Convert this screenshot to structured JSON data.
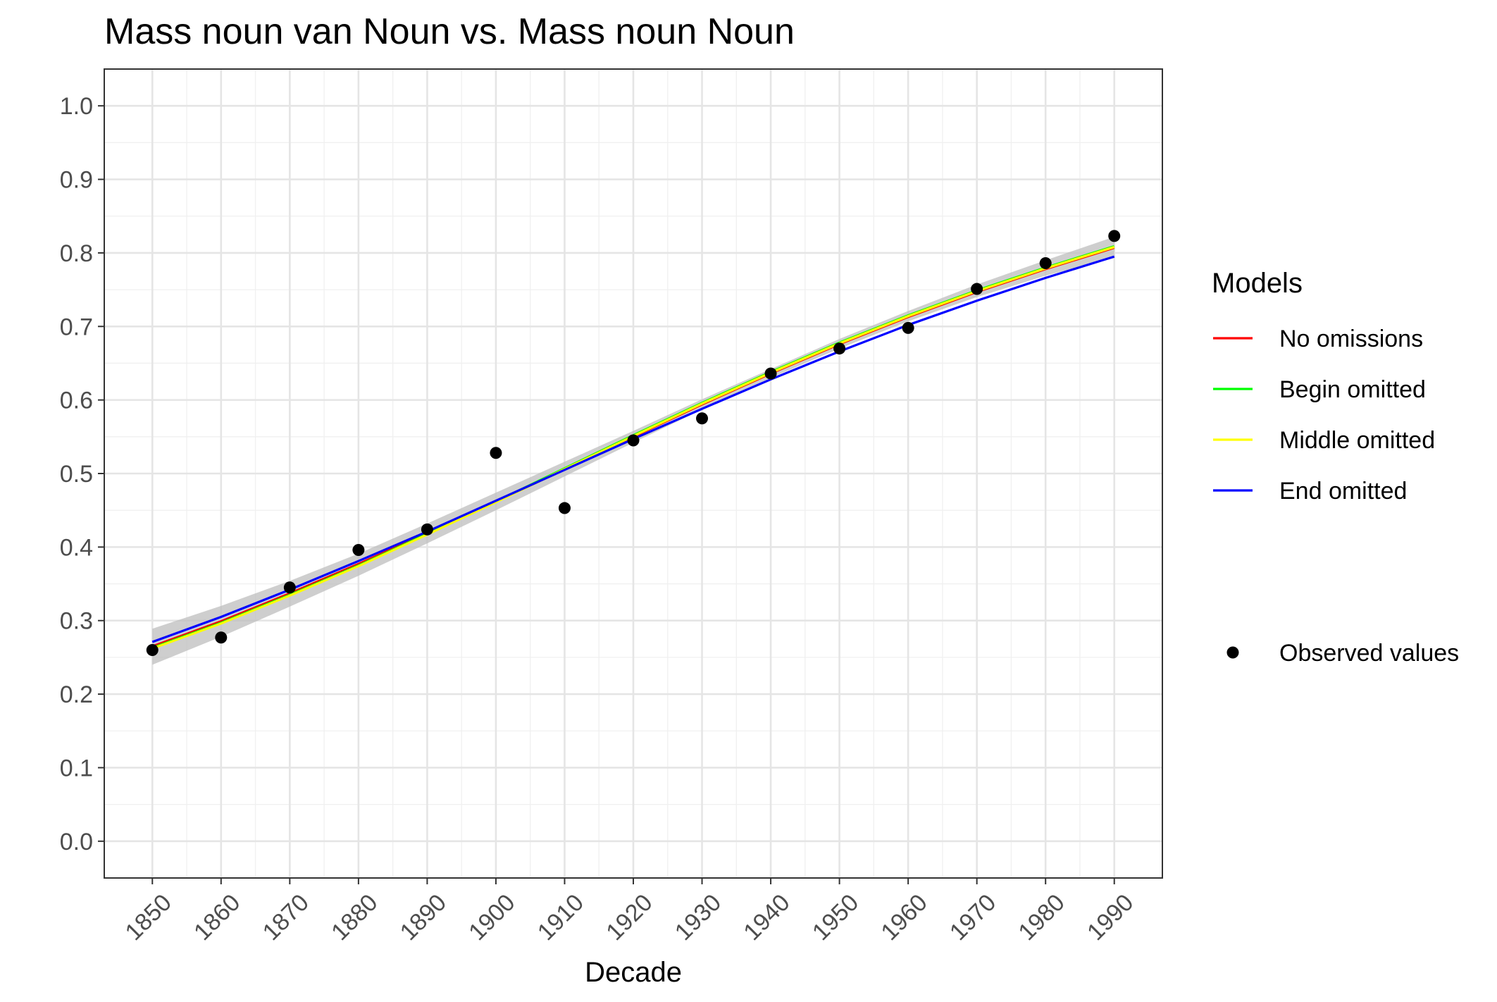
{
  "chart_data": {
    "type": "line",
    "title": "Mass noun van Noun vs. Mass noun Noun",
    "xlabel": "Decade",
    "ylabel": "",
    "x": [
      1850,
      1860,
      1870,
      1880,
      1890,
      1900,
      1910,
      1920,
      1930,
      1940,
      1950,
      1960,
      1970,
      1980,
      1990
    ],
    "xlim": [
      1843,
      1997
    ],
    "ylim": [
      -0.05,
      1.05
    ],
    "x_ticks": [
      "1850",
      "1860",
      "1870",
      "1880",
      "1890",
      "1900",
      "1910",
      "1920",
      "1930",
      "1940",
      "1950",
      "1960",
      "1970",
      "1980",
      "1990"
    ],
    "y_ticks": [
      "0.0",
      "0.1",
      "0.2",
      "0.3",
      "0.4",
      "0.5",
      "0.6",
      "0.7",
      "0.8",
      "0.9",
      "1.0"
    ],
    "grid": true,
    "legend_title": "Models",
    "legend_position": "right",
    "series": [
      {
        "name": "No omissions",
        "color": "#ff0000",
        "values": [
          0.265,
          0.299,
          0.337,
          0.377,
          0.419,
          0.462,
          0.506,
          0.55,
          0.594,
          0.636,
          0.676,
          0.713,
          0.747,
          0.778,
          0.807
        ]
      },
      {
        "name": "Begin omitted",
        "color": "#00ff00",
        "values": [
          0.263,
          0.297,
          0.335,
          0.375,
          0.418,
          0.462,
          0.507,
          0.552,
          0.596,
          0.638,
          0.678,
          0.715,
          0.749,
          0.78,
          0.809
        ]
      },
      {
        "name": "Middle omitted",
        "color": "#ffff00",
        "values": [
          0.262,
          0.296,
          0.334,
          0.374,
          0.417,
          0.461,
          0.506,
          0.551,
          0.595,
          0.637,
          0.677,
          0.714,
          0.748,
          0.779,
          0.808
        ]
      },
      {
        "name": "End omitted",
        "color": "#0000ff",
        "values": [
          0.271,
          0.305,
          0.342,
          0.381,
          0.421,
          0.463,
          0.505,
          0.547,
          0.588,
          0.628,
          0.666,
          0.702,
          0.735,
          0.766,
          0.795
        ]
      }
    ],
    "confidence_band": {
      "color": "#bdbdbd",
      "lower": [
        0.24,
        0.278,
        0.319,
        0.361,
        0.405,
        0.45,
        0.496,
        0.542,
        0.587,
        0.63,
        0.67,
        0.707,
        0.74,
        0.769,
        0.793
      ],
      "upper": [
        0.289,
        0.32,
        0.354,
        0.391,
        0.432,
        0.474,
        0.516,
        0.558,
        0.601,
        0.642,
        0.683,
        0.721,
        0.757,
        0.79,
        0.822
      ]
    },
    "observed": {
      "name": "Observed values",
      "color": "#000000",
      "values": [
        0.26,
        0.277,
        0.345,
        0.396,
        0.424,
        0.528,
        0.453,
        0.545,
        0.575,
        0.636,
        0.67,
        0.698,
        0.751,
        0.786,
        0.823
      ]
    }
  }
}
